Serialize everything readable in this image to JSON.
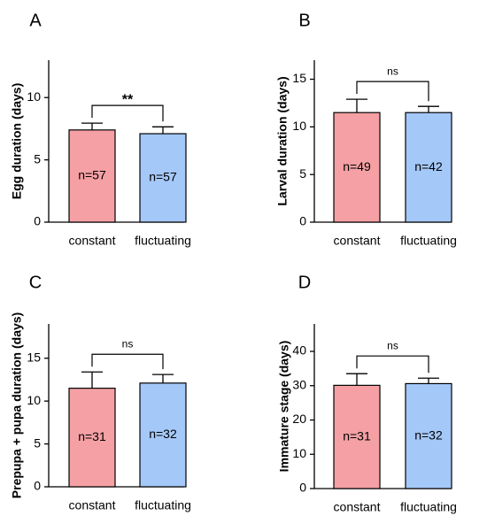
{
  "colors": {
    "constant": "#f4a0a4",
    "fluctuating": "#a4c8f8",
    "edge": "#000000"
  },
  "chart_data": [
    {
      "type": "bar",
      "panel": "A",
      "categories": [
        "constant",
        "fluctuating"
      ],
      "values": [
        7.4,
        7.1
      ],
      "errors": [
        0.55,
        0.55
      ],
      "n_labels": [
        "n=57",
        "n=57"
      ],
      "ylabel": "Egg duration (days)",
      "ylim": [
        0,
        13
      ],
      "yticks": [
        "0",
        "5",
        "10"
      ],
      "significance": "**"
    },
    {
      "type": "bar",
      "panel": "B",
      "categories": [
        "constant",
        "fluctuating"
      ],
      "values": [
        11.5,
        11.5
      ],
      "errors": [
        1.4,
        0.65
      ],
      "n_labels": [
        "n=49",
        "n=42"
      ],
      "ylabel": "Larval duration (days)",
      "ylim": [
        0,
        17
      ],
      "yticks": [
        "0",
        "5",
        "10",
        "15"
      ],
      "significance": "ns"
    },
    {
      "type": "bar",
      "panel": "C",
      "categories": [
        "constant",
        "fluctuating"
      ],
      "values": [
        11.5,
        12.1
      ],
      "errors": [
        1.9,
        1.0
      ],
      "n_labels": [
        "n=31",
        "n=32"
      ],
      "ylabel": "Prepupa + pupa duration (days)",
      "ylim": [
        0,
        19
      ],
      "yticks": [
        "0",
        "5",
        "10",
        "15"
      ],
      "significance": "ns"
    },
    {
      "type": "bar",
      "panel": "D",
      "categories": [
        "constant",
        "fluctuating"
      ],
      "values": [
        30.1,
        30.6
      ],
      "errors": [
        3.4,
        1.6
      ],
      "n_labels": [
        "n=31",
        "n=32"
      ],
      "ylabel": "Immature stage (days)",
      "ylim": [
        0,
        48
      ],
      "yticks": [
        "0",
        "10",
        "20",
        "30",
        "40"
      ],
      "significance": "ns"
    }
  ]
}
